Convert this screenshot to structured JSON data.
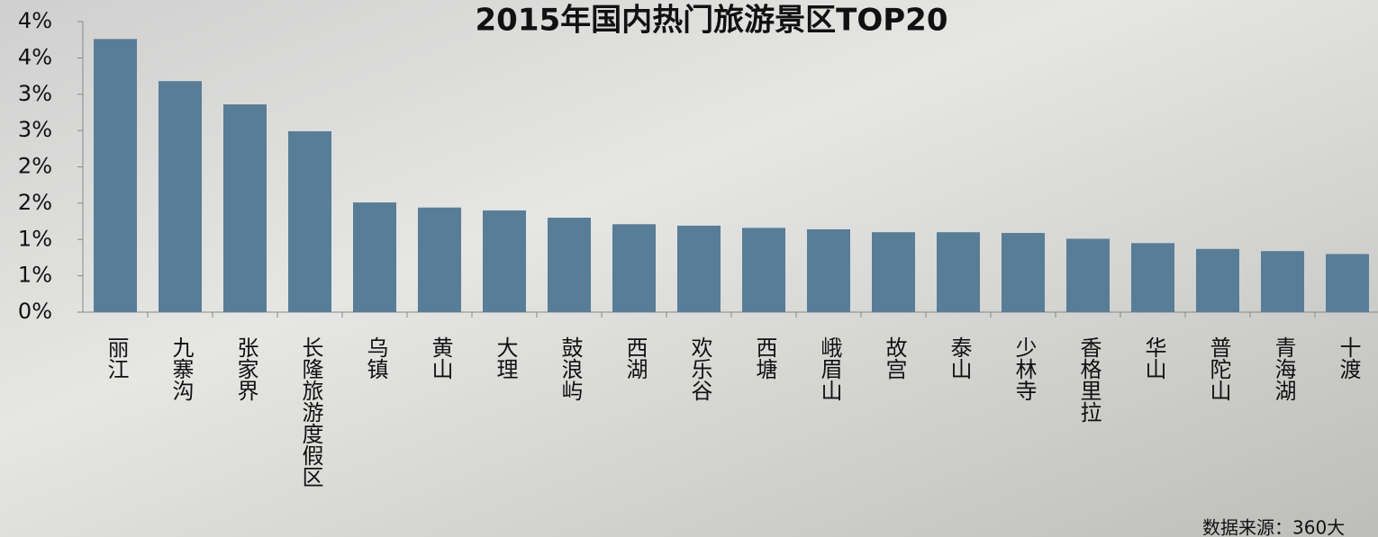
{
  "chart_data": {
    "type": "bar",
    "title": "2015年国内热门旅游景区TOP20",
    "categories": [
      "丽江",
      "九寨沟",
      "张家界",
      "长隆旅游度假区",
      "乌镇",
      "黄山",
      "大理",
      "鼓浪屿",
      "西湖",
      "欢乐谷",
      "西塘",
      "峨眉山",
      "故宫",
      "泰山",
      "少林寺",
      "香格里拉",
      "华山",
      "普陀山",
      "青海湖",
      "十渡"
    ],
    "values": [
      3.76,
      3.18,
      2.86,
      2.49,
      1.51,
      1.44,
      1.4,
      1.3,
      1.21,
      1.19,
      1.16,
      1.14,
      1.1,
      1.1,
      1.09,
      1.01,
      0.95,
      0.87,
      0.84,
      0.8
    ],
    "color": "#587d97",
    "ylim": [
      0,
      4
    ],
    "yticks": [
      {
        "value": 0,
        "label": "0%"
      },
      {
        "value": 0.5,
        "label": "1%"
      },
      {
        "value": 1,
        "label": "1%"
      },
      {
        "value": 1.5,
        "label": "2%"
      },
      {
        "value": 2,
        "label": "2%"
      },
      {
        "value": 2.5,
        "label": "3%"
      },
      {
        "value": 3,
        "label": "3%"
      },
      {
        "value": 3.5,
        "label": "4%"
      },
      {
        "value": 4,
        "label": "4%"
      }
    ],
    "source": "数据来源：360大"
  }
}
